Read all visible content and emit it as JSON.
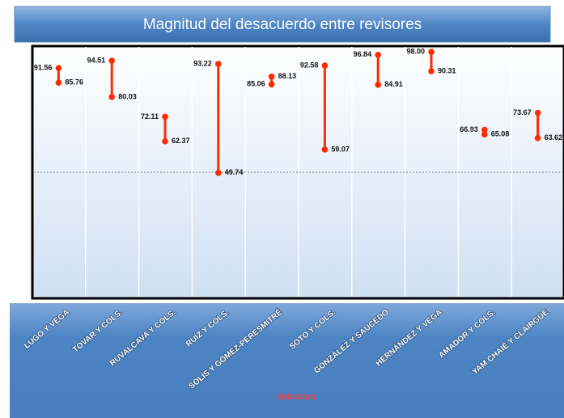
{
  "chart_data": {
    "type": "dumbbell",
    "title": "Magnitud del desacuerdo entre revisores",
    "x_label": "Artículos",
    "categories": [
      "LUGO Y VEGA",
      "TOVAR Y COLS.",
      "RUVALCAVA Y COLS.",
      "RUÍZ Y COLS.",
      "SOLÍS Y GÓMEZ-PERESMITRÉ",
      "SOTO Y COLS.",
      "GONZÁLEZ Y SAUCEDO",
      "HERNÁNDEZ Y VEGA",
      "AMADOR Y COLS.",
      "YAM CHAIÉ Y CLAIRGUE"
    ],
    "series": [
      {
        "color": "#ff2a00",
        "values": [
          91.56,
          94.51,
          72.11,
          93.22,
          85.06,
          92.58,
          96.84,
          98,
          66.93,
          73.67
        ],
        "value_labels": [
          "91.56",
          "94.51",
          "72.11",
          "93.22",
          "85.06",
          "92.58",
          "96.84",
          "98.00",
          "66.93",
          "73.67"
        ]
      },
      {
        "color": "#ff2a00",
        "values": [
          85.76,
          80.03,
          62.37,
          49.74,
          88.13,
          59.07,
          84.91,
          90.31,
          65.08,
          63.62
        ],
        "value_labels": [
          "85.76",
          "80.03",
          "62.37",
          "49.74",
          "88.13",
          "59.07",
          "84.91",
          "90.31",
          "65.08",
          "63.62"
        ]
      }
    ],
    "ylim": [
      0,
      100
    ],
    "reference_line": 50
  }
}
